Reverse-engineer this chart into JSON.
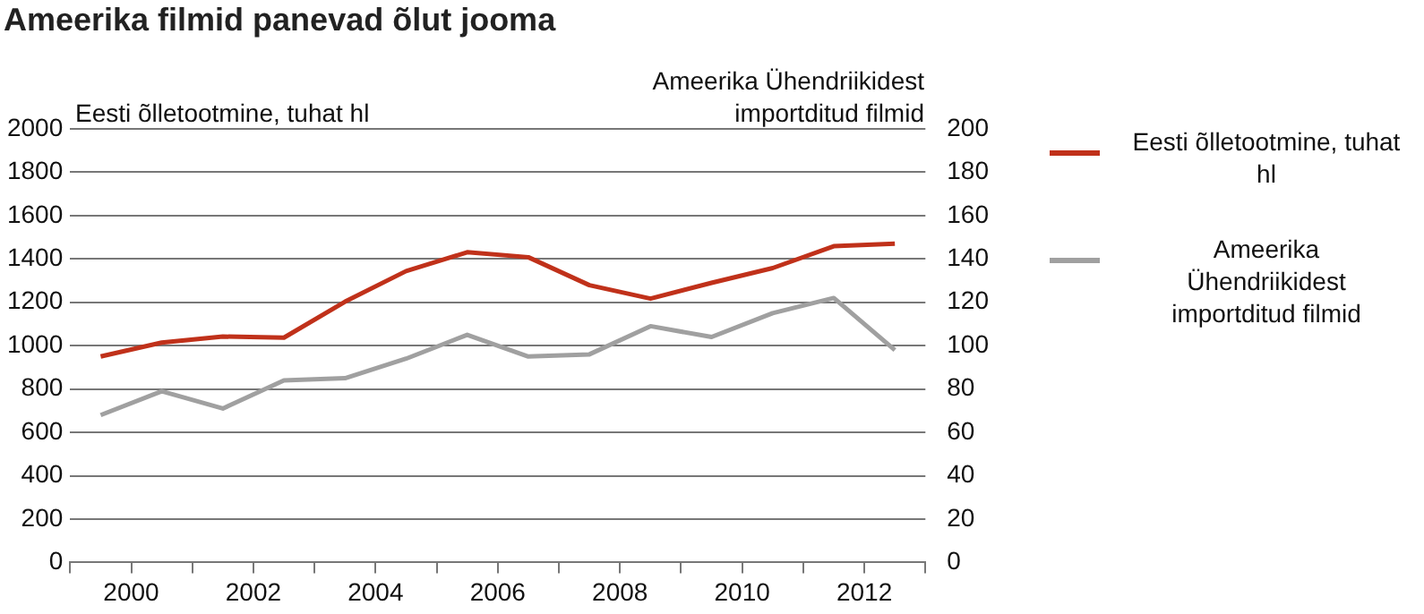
{
  "chart_data": {
    "type": "line",
    "title": "Ameerika filmid panevad õlut jooma",
    "ylabel": "Eesti õlletootmine, tuhat hl",
    "y2label": "Ameerika Ühendriikidest importditud filmid",
    "x": [
      1999.5,
      2000.5,
      2001.5,
      2002.5,
      2003.5,
      2004.5,
      2005.5,
      2006.5,
      2007.5,
      2008.5,
      2009.5,
      2010.5,
      2011.5,
      2012.5
    ],
    "series": [
      {
        "name": "Eesti õlletootmine, tuhat hl",
        "color": "#c0311a",
        "values": [
          950,
          1014,
          1042,
          1037,
          1203,
          1344,
          1431,
          1408,
          1279,
          1217,
          1290,
          1358,
          1459,
          1470
        ]
      },
      {
        "name": "Ameerika Ühendriikidest importditud filmid",
        "color": "#a0a0a0",
        "axis": "y2",
        "values": [
          68,
          79,
          71,
          84,
          85,
          94,
          105,
          95,
          96,
          109,
          104,
          115,
          122,
          98
        ]
      }
    ],
    "xlim": [
      1999,
      2013
    ],
    "xticks": [
      {
        "value": 1999,
        "label": null
      },
      {
        "value": 2000,
        "label": "2000"
      },
      {
        "value": 2001,
        "label": null
      },
      {
        "value": 2002,
        "label": "2002"
      },
      {
        "value": 2003,
        "label": null
      },
      {
        "value": 2004,
        "label": "2004"
      },
      {
        "value": 2005,
        "label": null
      },
      {
        "value": 2006,
        "label": "2006"
      },
      {
        "value": 2007,
        "label": null
      },
      {
        "value": 2008,
        "label": "2008"
      },
      {
        "value": 2009,
        "label": null
      },
      {
        "value": 2010,
        "label": "2010"
      },
      {
        "value": 2011,
        "label": null
      },
      {
        "value": 2012,
        "label": "2012"
      },
      {
        "value": 2013,
        "label": null
      }
    ],
    "ylim": [
      0,
      2000
    ],
    "yticks": [
      0,
      200,
      400,
      600,
      800,
      1000,
      1200,
      1400,
      1600,
      1800,
      2000
    ],
    "y2lim": [
      0,
      200
    ],
    "y2ticks": [
      0,
      20,
      40,
      60,
      80,
      100,
      120,
      140,
      160,
      180,
      200
    ],
    "grid": "y",
    "legend": "right",
    "marker": "none",
    "line_style": "solid"
  }
}
